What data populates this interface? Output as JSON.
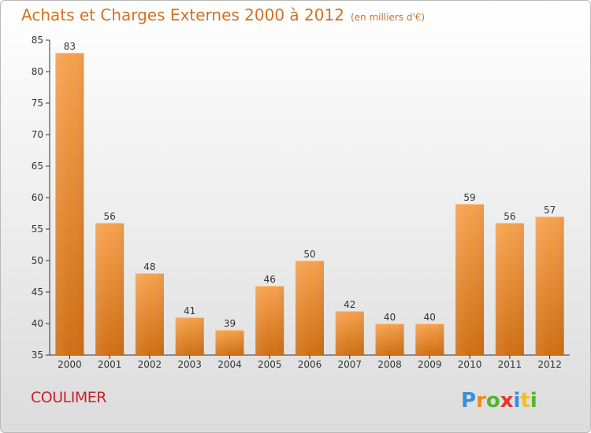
{
  "title": "Achats et Charges Externes 2000 à 2012",
  "unit_label": "(en milliers d'€)",
  "city": "COULIMER",
  "logo_text": "Proxiti",
  "colors": {
    "title": "#d6701e",
    "city": "#c91f2b",
    "bar_top": "#f6a24f",
    "bar_bottom": "#cf6f15",
    "axis": "#333333",
    "grid": "#cccccc"
  },
  "chart_data": {
    "type": "bar",
    "categories": [
      "2000",
      "2001",
      "2002",
      "2003",
      "2004",
      "2005",
      "2006",
      "2007",
      "2008",
      "2009",
      "2010",
      "2011",
      "2012"
    ],
    "values": [
      83,
      56,
      48,
      41,
      39,
      46,
      50,
      42,
      40,
      40,
      59,
      56,
      57
    ],
    "ylim": [
      35,
      85
    ],
    "yticks": [
      35,
      40,
      45,
      50,
      55,
      60,
      65,
      70,
      75,
      80,
      85
    ],
    "data_labels": true
  }
}
